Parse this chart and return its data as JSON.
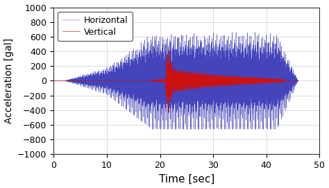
{
  "xlim": [
    0,
    50
  ],
  "ylim": [
    -1000,
    1000
  ],
  "xticks": [
    0,
    10,
    20,
    30,
    40,
    50
  ],
  "yticks": [
    -1000,
    -800,
    -600,
    -400,
    -200,
    0,
    200,
    400,
    600,
    800,
    1000
  ],
  "xlabel": "Time [sec]",
  "ylabel": "Acceleration [gal]",
  "legend_labels": [
    "Horizontal",
    "Vertical"
  ],
  "horizontal_color": "#4444bb",
  "vertical_color": "#cc1111",
  "background_color": "#ffffff",
  "grid_color": "#cccccc",
  "total_duration": 46.0,
  "sample_rate": 500,
  "horiz_peak": 660,
  "vert_peak": 460,
  "vert_spike_peak": 460,
  "horiz_t_start": 2.0,
  "horiz_t_ramp1": 10.0,
  "horiz_t_ramp2": 18.5,
  "horiz_t_peak_end": 42.0,
  "horiz_t_end": 46.0,
  "vert_t_start": 17.5,
  "vert_t_spike": 21.0,
  "vert_t_spike_end": 22.5,
  "vert_t_main_end": 30.0,
  "vert_t_tail_end": 43.5,
  "horiz_freq_base": 14.0,
  "vert_freq_base": 8.0,
  "figsize": [
    4.74,
    2.71
  ],
  "dpi": 100,
  "linewidth_horiz": 0.3,
  "linewidth_vert": 0.45,
  "xlabel_fontsize": 11,
  "ylabel_fontsize": 10,
  "tick_fontsize": 9,
  "legend_fontsize": 9
}
